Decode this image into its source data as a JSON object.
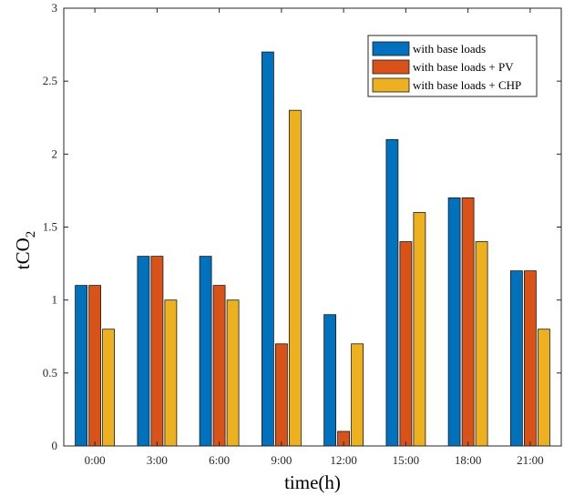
{
  "chart_data": {
    "type": "bar",
    "title": "",
    "xlabel": "time(h)",
    "ylabel_main": "tCO",
    "ylabel_sub": "2",
    "categories": [
      "0:00",
      "3:00",
      "6:00",
      "9:00",
      "12:00",
      "15:00",
      "18:00",
      "21:00"
    ],
    "ylim": [
      0,
      3
    ],
    "yticks": [
      "0",
      "0.5",
      "1",
      "1.5",
      "2",
      "2.5",
      "3"
    ],
    "grid": false,
    "legend_position": "top-right",
    "series": [
      {
        "name": "with base loads",
        "color": "#0072BD",
        "values": [
          1.1,
          1.3,
          1.3,
          2.7,
          0.9,
          2.1,
          1.7,
          1.2
        ]
      },
      {
        "name": "with base loads + PV",
        "color": "#D95319",
        "values": [
          1.1,
          1.3,
          1.1,
          0.7,
          0.1,
          1.4,
          1.7,
          1.2
        ]
      },
      {
        "name": "with base loads + CHP",
        "color": "#EDB120",
        "values": [
          0.8,
          1.0,
          1.0,
          2.3,
          0.7,
          1.6,
          1.4,
          0.8
        ]
      }
    ]
  }
}
